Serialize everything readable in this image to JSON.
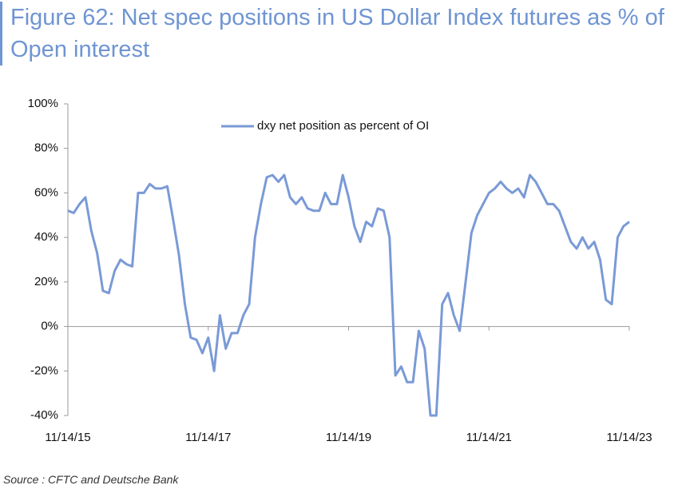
{
  "chart_data": {
    "type": "line",
    "title": "Figure 62: Net spec positions in US Dollar Index futures as % of Open interest",
    "categories": [
      "11/14/15",
      null,
      null,
      null,
      null,
      null,
      null,
      null,
      null,
      null,
      null,
      null,
      null,
      null,
      null,
      null,
      null,
      null,
      null,
      null,
      null,
      null,
      null,
      null,
      "11/14/17",
      null,
      null,
      null,
      null,
      null,
      null,
      null,
      null,
      null,
      null,
      null,
      null,
      null,
      null,
      null,
      null,
      null,
      null,
      null,
      null,
      null,
      null,
      null,
      "11/14/19",
      null,
      null,
      null,
      null,
      null,
      null,
      null,
      null,
      null,
      null,
      null,
      null,
      null,
      null,
      null,
      null,
      null,
      null,
      null,
      null,
      null,
      null,
      null,
      "11/14/21",
      null,
      null,
      null,
      null,
      null,
      null,
      null,
      null,
      null,
      null,
      null,
      null,
      null,
      null,
      null,
      null,
      null,
      null,
      null,
      null,
      null,
      null,
      null,
      "11/14/23"
    ],
    "series": [
      {
        "name": "dxy net position as percent of OI",
        "color": "#7a9ad6",
        "values": [
          52,
          51,
          55,
          58,
          43,
          33,
          16,
          15,
          25,
          30,
          28,
          27,
          60,
          60,
          64,
          62,
          62,
          63,
          48,
          32,
          10,
          -5,
          -6,
          -12,
          -5,
          -20,
          5,
          -10,
          -3,
          -3,
          5,
          10,
          40,
          55,
          67,
          68,
          65,
          68,
          58,
          55,
          58,
          53,
          52,
          52,
          60,
          55,
          55,
          68,
          58,
          45,
          38,
          47,
          45,
          53,
          52,
          40,
          -22,
          -18,
          -25,
          -25,
          -2,
          -10,
          -40,
          -40,
          10,
          15,
          5,
          -2,
          20,
          42,
          50,
          55,
          60,
          62,
          65,
          62,
          60,
          62,
          58,
          68,
          65,
          60,
          55,
          55,
          52,
          45,
          38,
          35,
          40,
          35,
          38,
          30,
          12,
          10,
          40,
          45,
          47
        ]
      }
    ],
    "ylim": [
      -40,
      100
    ],
    "yticks": [
      {
        "value": -40,
        "label": "-40%"
      },
      {
        "value": -20,
        "label": "-20%"
      },
      {
        "value": 0,
        "label": "0%"
      },
      {
        "value": 20,
        "label": "20%"
      },
      {
        "value": 40,
        "label": "40%"
      },
      {
        "value": 60,
        "label": "60%"
      },
      {
        "value": 80,
        "label": "80%"
      },
      {
        "value": 100,
        "label": "100%"
      }
    ],
    "legend": "top"
  },
  "source": "Source : CFTC and Deutsche Bank"
}
